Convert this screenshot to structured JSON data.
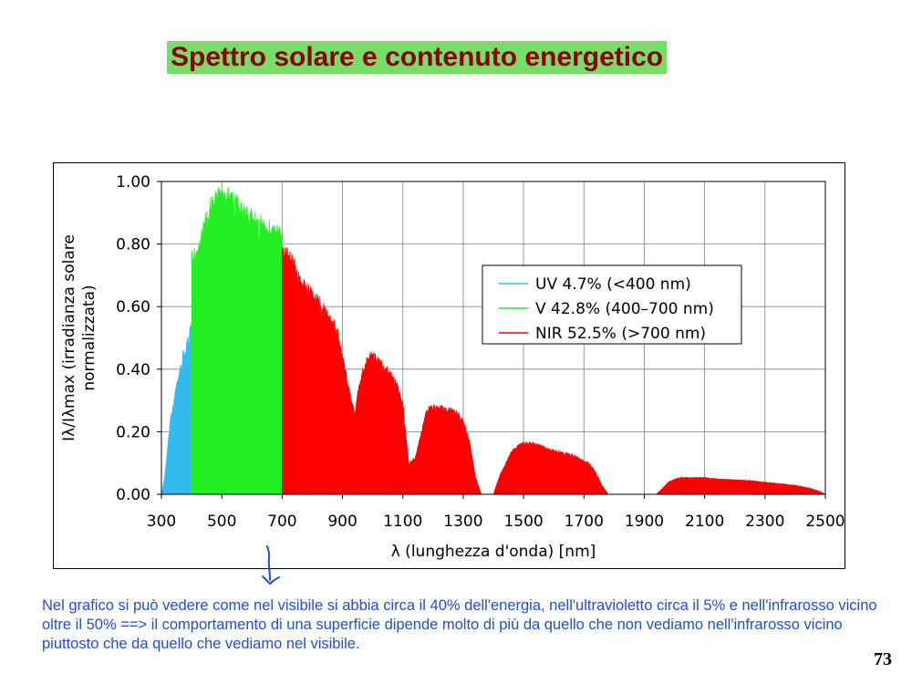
{
  "slide": {
    "title": "Spettro solare e contenuto energetico",
    "caption": "Nel grafico si può vedere come nel visibile si abbia circa il 40% dell'energia, nell'ultravioletto circa il 5% e nell'infrarosso vicino oltre il 50% ==> il comportamento di una superficie dipende molto di più da quello che non vediamo nell'infrarosso vicino piuttosto che da quello che vediamo nel visibile.",
    "page_number": "73"
  },
  "colors": {
    "title_bg": "#77dd66",
    "title_text": "#8b0000",
    "uv": "#33bbee",
    "visible": "#22ee22",
    "nir": "#ff0000",
    "caption": "#1f4fd8",
    "arrow": "#1f4fd8"
  },
  "annotations": {
    "arrow_icon": "hand-drawn-down-arrow"
  },
  "chart_data": {
    "type": "area",
    "title": "",
    "xlabel": "λ (lunghezza d'onda) [nm]",
    "ylabel_line1": "Iλ/Iλmax (irradianza solare",
    "ylabel_line2": "normalizzata)",
    "xlim": [
      300,
      2500
    ],
    "ylim": [
      0,
      1
    ],
    "xticks": [
      300,
      500,
      700,
      900,
      1100,
      1300,
      1500,
      1700,
      1900,
      2100,
      2300,
      2500
    ],
    "yticks": [
      "0.00",
      "0.20",
      "0.40",
      "0.60",
      "0.80",
      "1.00"
    ],
    "grid": true,
    "legend_position": "right-center",
    "series": [
      {
        "name": "UV  4.7%  (<400 nm)",
        "color": "#33bbee",
        "x": [
          300,
          310,
          320,
          330,
          340,
          350,
          360,
          370,
          380,
          390,
          400
        ],
        "y": [
          0.0,
          0.05,
          0.15,
          0.25,
          0.3,
          0.36,
          0.4,
          0.46,
          0.48,
          0.52,
          0.56
        ]
      },
      {
        "name": "V  42.8%  (400–700 nm)",
        "color": "#22ee22",
        "x": [
          400,
          420,
          440,
          460,
          480,
          500,
          520,
          540,
          560,
          580,
          600,
          620,
          640,
          660,
          680,
          700
        ],
        "y": [
          0.78,
          0.8,
          0.88,
          0.95,
          0.98,
          1.0,
          0.99,
          0.97,
          0.95,
          0.93,
          0.92,
          0.9,
          0.89,
          0.88,
          0.87,
          0.85
        ]
      },
      {
        "name": "NIR  52.5%  (>700 nm)",
        "color": "#ff0000",
        "x": [
          700,
          720,
          740,
          760,
          780,
          800,
          820,
          840,
          860,
          880,
          900,
          920,
          940,
          960,
          980,
          1000,
          1020,
          1040,
          1060,
          1080,
          1100,
          1120,
          1140,
          1160,
          1180,
          1200,
          1220,
          1240,
          1260,
          1280,
          1300,
          1320,
          1340,
          1360,
          1380,
          1400,
          1420,
          1440,
          1460,
          1480,
          1500,
          1520,
          1540,
          1560,
          1580,
          1600,
          1620,
          1640,
          1660,
          1680,
          1700,
          1720,
          1740,
          1760,
          1780,
          1800,
          1820,
          1840,
          1860,
          1880,
          1900,
          1920,
          1940,
          1960,
          1980,
          2000,
          2020,
          2040,
          2060,
          2080,
          2100,
          2150,
          2200,
          2250,
          2300,
          2350,
          2400,
          2450,
          2480,
          2500
        ],
        "y": [
          0.8,
          0.79,
          0.76,
          0.7,
          0.68,
          0.66,
          0.64,
          0.61,
          0.58,
          0.55,
          0.46,
          0.35,
          0.27,
          0.38,
          0.45,
          0.46,
          0.44,
          0.42,
          0.4,
          0.36,
          0.3,
          0.1,
          0.12,
          0.2,
          0.28,
          0.29,
          0.29,
          0.28,
          0.28,
          0.27,
          0.24,
          0.18,
          0.06,
          0.0,
          0.0,
          0.0,
          0.06,
          0.1,
          0.14,
          0.16,
          0.17,
          0.17,
          0.165,
          0.16,
          0.15,
          0.145,
          0.14,
          0.135,
          0.13,
          0.12,
          0.11,
          0.1,
          0.07,
          0.03,
          0.0,
          0.0,
          0.0,
          0.0,
          0.0,
          0.0,
          0.0,
          0.0,
          0.0,
          0.02,
          0.04,
          0.05,
          0.055,
          0.055,
          0.055,
          0.055,
          0.055,
          0.05,
          0.048,
          0.045,
          0.04,
          0.035,
          0.03,
          0.02,
          0.01,
          0.0
        ]
      }
    ]
  }
}
